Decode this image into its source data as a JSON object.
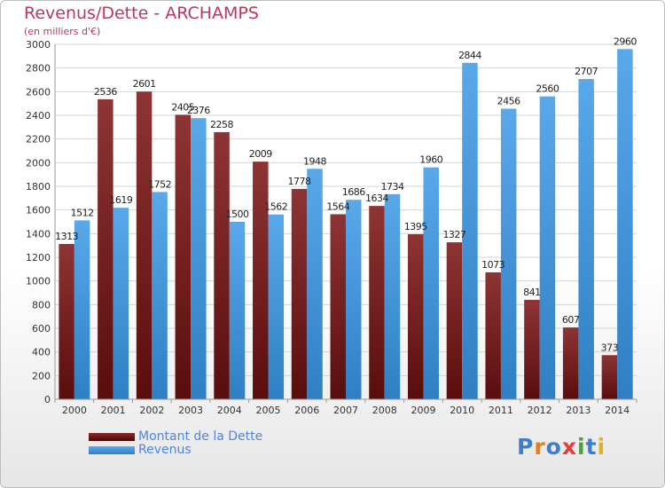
{
  "chart_data": {
    "type": "bar",
    "title": "Revenus/Dette - ARCHAMPS",
    "subtitle": "(en milliers d'€)",
    "categories": [
      "2000",
      "2001",
      "2002",
      "2003",
      "2004",
      "2005",
      "2006",
      "2007",
      "2008",
      "2009",
      "2010",
      "2011",
      "2012",
      "2013",
      "2014"
    ],
    "series": [
      {
        "name": "Montant de la Dette",
        "color": "#8b2a2a",
        "values": [
          1313,
          2536,
          2601,
          2405,
          2258,
          2009,
          1778,
          1564,
          1634,
          1395,
          1327,
          1073,
          841,
          607,
          373
        ],
        "labels": [
          "1313",
          "2536",
          "2601",
          "2405",
          "2258",
          "2009",
          "1778",
          "1564",
          "1634",
          "1395",
          "1327",
          "1073",
          "841",
          "607",
          "373"
        ]
      },
      {
        "name": "Revenus",
        "color": "#4ea0e6",
        "values": [
          1512,
          1619,
          1752,
          2376,
          1500,
          1562,
          1948,
          1686,
          1734,
          1960,
          2844,
          2456,
          2560,
          2707,
          2960
        ],
        "labels": [
          "1512",
          "1619",
          "1752",
          "2376",
          "1500",
          "1562",
          "1948",
          "1686",
          "1734",
          "1960",
          "2844",
          "2456",
          "2560",
          "2707",
          "2960"
        ]
      }
    ],
    "ylim": [
      0,
      3000
    ],
    "yticks": [
      "0",
      "200",
      "400",
      "600",
      "800",
      "1000",
      "1200",
      "1400",
      "1600",
      "1800",
      "2000",
      "2200",
      "2400",
      "2600",
      "2800",
      "3000"
    ],
    "grid": true,
    "legend_position": "bottom-left"
  },
  "logo": {
    "text": "Proxiti",
    "colors": [
      "#3c7fd0",
      "#e87a1e",
      "#3c7fd0",
      "#e83b3b",
      "#4aa23c",
      "#3c7fd0",
      "#e0b020"
    ]
  }
}
